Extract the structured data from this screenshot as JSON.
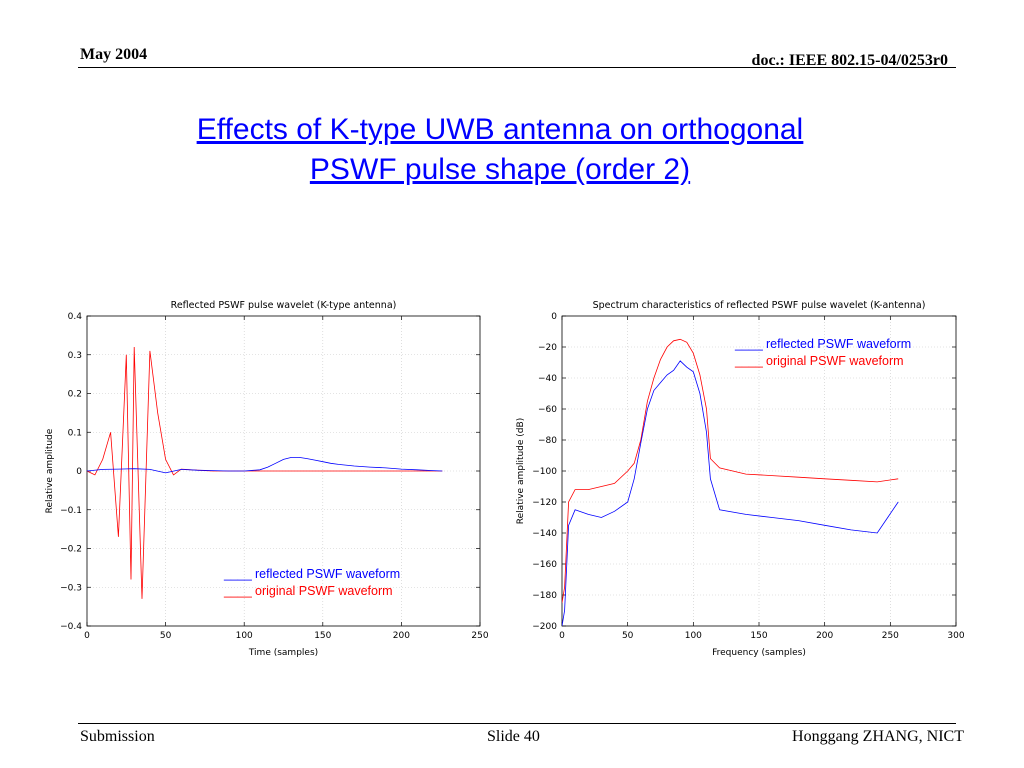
{
  "header": {
    "date": "May 2004",
    "doc": "doc.: IEEE 802.15-04/0253r0"
  },
  "title": {
    "line1": "Effects of K-type UWB antenna on orthogonal",
    "line2": "PSWF pulse shape (order 2)"
  },
  "footer": {
    "left": "Submission",
    "center": "Slide 40",
    "right": "Honggang ZHANG, NICT"
  },
  "colors": {
    "reflected": "#0000ff",
    "original": "#ff0000",
    "title": "#0000ff"
  },
  "chart_data": [
    {
      "type": "line",
      "title": "Reflected PSWF pulse wavelet (K-type antenna)",
      "xlabel": "Time (samples)",
      "ylabel": "Relative amplitude",
      "xlim": [
        0,
        250
      ],
      "ylim": [
        -0.4,
        0.4
      ],
      "xticks": [
        "0",
        "50",
        "100",
        "150",
        "200",
        "250"
      ],
      "yticks": [
        "0.4",
        "0.3",
        "0.2",
        "0.1",
        "0",
        "−0.1",
        "−0.2",
        "−0.3",
        "−0.4"
      ],
      "grid": true,
      "legend_position": "bottom-center",
      "series": [
        {
          "name": "reflected PSWF waveform",
          "legend_marker": "____",
          "color": "#0000ff",
          "x": [
            0,
            10,
            20,
            30,
            40,
            50,
            60,
            70,
            80,
            90,
            100,
            110,
            115,
            120,
            125,
            130,
            135,
            140,
            145,
            150,
            155,
            160,
            170,
            180,
            190,
            200,
            210,
            220,
            226
          ],
          "y": [
            0,
            0.004,
            0.005,
            0.006,
            0.004,
            -0.005,
            0.004,
            0.002,
            0.001,
            0,
            0,
            0.003,
            0.01,
            0.02,
            0.03,
            0.035,
            0.035,
            0.032,
            0.028,
            0.024,
            0.02,
            0.017,
            0.013,
            0.01,
            0.008,
            0.005,
            0.003,
            0.001,
            0
          ]
        },
        {
          "name": "original PSWF waveform",
          "legend_marker": "____",
          "color": "#ff0000",
          "x": [
            0,
            5,
            10,
            15,
            20,
            25,
            28,
            30,
            35,
            40,
            45,
            50,
            55,
            60,
            70,
            80,
            100,
            140,
            200,
            226
          ],
          "y": [
            0,
            -0.01,
            0.03,
            0.1,
            -0.17,
            0.3,
            -0.28,
            0.32,
            -0.33,
            0.31,
            0.15,
            0.03,
            -0.01,
            0.005,
            0.002,
            0,
            0,
            0,
            0,
            0
          ]
        }
      ]
    },
    {
      "type": "line",
      "title": "Spectrum characteristics of reflected PSWF pulse wavelet (K-antenna)",
      "xlabel": "Frequency (samples)",
      "ylabel": "Relative amplitude (dB)",
      "xlim": [
        0,
        300
      ],
      "ylim": [
        -200,
        0
      ],
      "xticks": [
        "0",
        "50",
        "100",
        "150",
        "200",
        "250",
        "300"
      ],
      "yticks": [
        "0",
        "−20",
        "−40",
        "−60",
        "−80",
        "−100",
        "−120",
        "−140",
        "−160",
        "−180",
        "−200"
      ],
      "grid": true,
      "legend_position": "top-right",
      "series": [
        {
          "name": "reflected PSWF waveform",
          "legend_marker": "____",
          "color": "#0000ff",
          "x": [
            0,
            2,
            5,
            10,
            20,
            30,
            40,
            50,
            55,
            60,
            65,
            70,
            75,
            80,
            85,
            90,
            95,
            100,
            105,
            110,
            113,
            120,
            140,
            160,
            180,
            200,
            220,
            240,
            256
          ],
          "y": [
            -200,
            -190,
            -135,
            -125,
            -128,
            -130,
            -126,
            -120,
            -105,
            -82,
            -60,
            -48,
            -43,
            -38,
            -35,
            -29,
            -33,
            -36,
            -50,
            -75,
            -105,
            -125,
            -128,
            -130,
            -132,
            -135,
            -138,
            -140,
            -120
          ]
        },
        {
          "name": "original PSWF waveform",
          "legend_marker": "____",
          "color": "#ff0000",
          "x": [
            0,
            2,
            5,
            10,
            20,
            30,
            40,
            50,
            55,
            60,
            65,
            70,
            75,
            80,
            85,
            90,
            95,
            100,
            105,
            110,
            113,
            120,
            140,
            160,
            180,
            200,
            220,
            240,
            256
          ],
          "y": [
            -185,
            -175,
            -120,
            -112,
            -112,
            -110,
            -108,
            -100,
            -95,
            -80,
            -55,
            -40,
            -28,
            -20,
            -16,
            -15,
            -17,
            -24,
            -38,
            -60,
            -92,
            -98,
            -102,
            -103,
            -104,
            -105,
            -106,
            -107,
            -105
          ]
        }
      ]
    }
  ]
}
